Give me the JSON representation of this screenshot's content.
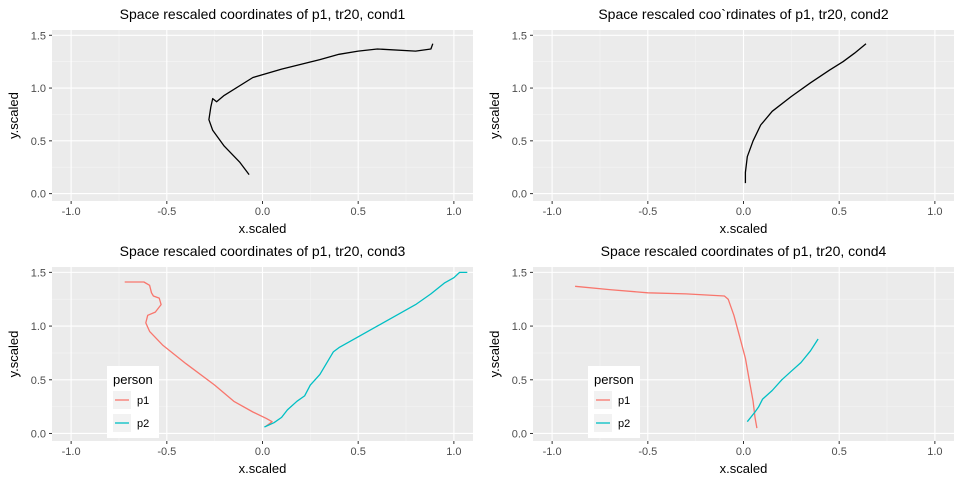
{
  "chart_data": [
    {
      "type": "line",
      "title": "Space rescaled coordinates of p1, tr20, cond1",
      "xlabel": "x.scaled",
      "ylabel": "y.scaled",
      "xlim": [
        -1.1,
        1.1
      ],
      "ylim": [
        -0.07,
        1.55
      ],
      "xticks": [
        -1.0,
        -0.5,
        0.0,
        0.5,
        1.0
      ],
      "xtick_labels": [
        "-1.0",
        "-0.5",
        "0.0",
        "0.5",
        "1.0"
      ],
      "yticks": [
        0.0,
        0.5,
        1.0,
        1.5
      ],
      "ytick_labels": [
        "0.0",
        "0.5",
        "1.0",
        "1.5"
      ],
      "grid": true,
      "legend": null,
      "series": [
        {
          "color": "#000000",
          "points": [
            [
              0.89,
              1.42
            ],
            [
              0.88,
              1.37
            ],
            [
              0.8,
              1.35
            ],
            [
              0.6,
              1.37
            ],
            [
              0.5,
              1.35
            ],
            [
              0.4,
              1.32
            ],
            [
              0.3,
              1.27
            ],
            [
              0.1,
              1.18
            ],
            [
              -0.05,
              1.1
            ],
            [
              -0.2,
              0.93
            ],
            [
              -0.24,
              0.87
            ],
            [
              -0.26,
              0.9
            ],
            [
              -0.27,
              0.82
            ],
            [
              -0.28,
              0.7
            ],
            [
              -0.26,
              0.6
            ],
            [
              -0.2,
              0.45
            ],
            [
              -0.12,
              0.3
            ],
            [
              -0.07,
              0.18
            ]
          ]
        }
      ]
    },
    {
      "type": "line",
      "title": "Space rescaled coo`rdinates of p1, tr20, cond2",
      "xlabel": "x.scaled",
      "ylabel": "y.scaled",
      "xlim": [
        -1.1,
        1.1
      ],
      "ylim": [
        -0.07,
        1.55
      ],
      "xticks": [
        -1.0,
        -0.5,
        0.0,
        0.5,
        1.0
      ],
      "xtick_labels": [
        "-1.0",
        "-0.5",
        "0.0",
        "0.5",
        "1.0"
      ],
      "yticks": [
        0.0,
        0.5,
        1.0,
        1.5
      ],
      "ytick_labels": [
        "0.0",
        "0.5",
        "1.0",
        "1.5"
      ],
      "grid": true,
      "legend": null,
      "series": [
        {
          "color": "#000000",
          "points": [
            [
              0.01,
              0.1
            ],
            [
              0.01,
              0.2
            ],
            [
              0.02,
              0.35
            ],
            [
              0.05,
              0.5
            ],
            [
              0.09,
              0.65
            ],
            [
              0.15,
              0.78
            ],
            [
              0.25,
              0.92
            ],
            [
              0.35,
              1.05
            ],
            [
              0.45,
              1.17
            ],
            [
              0.52,
              1.25
            ],
            [
              0.58,
              1.33
            ],
            [
              0.64,
              1.42
            ]
          ]
        }
      ]
    },
    {
      "type": "line",
      "title": "Space rescaled coordinates of p1, tr20, cond3",
      "xlabel": "x.scaled",
      "ylabel": "y.scaled",
      "xlim": [
        -1.1,
        1.1
      ],
      "ylim": [
        -0.07,
        1.55
      ],
      "xticks": [
        -1.0,
        -0.5,
        0.0,
        0.5,
        1.0
      ],
      "xtick_labels": [
        "-1.0",
        "-0.5",
        "0.0",
        "0.5",
        "1.0"
      ],
      "yticks": [
        0.0,
        0.5,
        1.0,
        1.5
      ],
      "ytick_labels": [
        "0.0",
        "0.5",
        "1.0",
        "1.5"
      ],
      "grid": true,
      "legend": {
        "title": "person",
        "position": "bottom-left"
      },
      "series": [
        {
          "name": "p1",
          "color": "#F8766D",
          "points": [
            [
              -0.72,
              1.41
            ],
            [
              -0.62,
              1.41
            ],
            [
              -0.59,
              1.38
            ],
            [
              -0.58,
              1.31
            ],
            [
              -0.57,
              1.28
            ],
            [
              -0.54,
              1.26
            ],
            [
              -0.53,
              1.2
            ],
            [
              -0.56,
              1.13
            ],
            [
              -0.6,
              1.1
            ],
            [
              -0.61,
              1.03
            ],
            [
              -0.59,
              0.95
            ],
            [
              -0.52,
              0.82
            ],
            [
              -0.4,
              0.65
            ],
            [
              -0.25,
              0.45
            ],
            [
              -0.15,
              0.3
            ],
            [
              -0.05,
              0.2
            ],
            [
              0.02,
              0.14
            ],
            [
              0.05,
              0.11
            ],
            [
              0.02,
              0.07
            ]
          ]
        },
        {
          "name": "p2",
          "color": "#00BFC4",
          "points": [
            [
              0.01,
              0.06
            ],
            [
              0.06,
              0.1
            ],
            [
              0.1,
              0.15
            ],
            [
              0.13,
              0.22
            ],
            [
              0.18,
              0.3
            ],
            [
              0.22,
              0.35
            ],
            [
              0.25,
              0.45
            ],
            [
              0.3,
              0.55
            ],
            [
              0.35,
              0.7
            ],
            [
              0.37,
              0.76
            ],
            [
              0.4,
              0.8
            ],
            [
              0.5,
              0.9
            ],
            [
              0.6,
              1.0
            ],
            [
              0.7,
              1.1
            ],
            [
              0.8,
              1.2
            ],
            [
              0.88,
              1.3
            ],
            [
              0.95,
              1.4
            ],
            [
              1.0,
              1.45
            ],
            [
              1.03,
              1.5
            ],
            [
              1.07,
              1.5
            ]
          ]
        }
      ]
    },
    {
      "type": "line",
      "title": "Space rescaled coordinates of p1, tr20, cond4",
      "xlabel": "x.scaled",
      "ylabel": "y.scaled",
      "xlim": [
        -1.1,
        1.1
      ],
      "ylim": [
        -0.07,
        1.55
      ],
      "xticks": [
        -1.0,
        -0.5,
        0.0,
        0.5,
        1.0
      ],
      "xtick_labels": [
        "-1.0",
        "-0.5",
        "0.0",
        "0.5",
        "1.0"
      ],
      "yticks": [
        0.0,
        0.5,
        1.0,
        1.5
      ],
      "ytick_labels": [
        "0.0",
        "0.5",
        "1.0",
        "1.5"
      ],
      "grid": true,
      "legend": {
        "title": "person",
        "position": "bottom-left"
      },
      "series": [
        {
          "name": "p1",
          "color": "#F8766D",
          "points": [
            [
              -0.88,
              1.37
            ],
            [
              -0.7,
              1.34
            ],
            [
              -0.5,
              1.31
            ],
            [
              -0.3,
              1.3
            ],
            [
              -0.1,
              1.28
            ],
            [
              -0.08,
              1.25
            ],
            [
              -0.05,
              1.1
            ],
            [
              -0.02,
              0.9
            ],
            [
              0.01,
              0.7
            ],
            [
              0.03,
              0.5
            ],
            [
              0.05,
              0.3
            ],
            [
              0.06,
              0.15
            ],
            [
              0.07,
              0.05
            ]
          ]
        },
        {
          "name": "p2",
          "color": "#00BFC4",
          "points": [
            [
              0.02,
              0.11
            ],
            [
              0.06,
              0.2
            ],
            [
              0.08,
              0.25
            ],
            [
              0.1,
              0.32
            ],
            [
              0.15,
              0.4
            ],
            [
              0.2,
              0.5
            ],
            [
              0.25,
              0.58
            ],
            [
              0.3,
              0.66
            ],
            [
              0.35,
              0.77
            ],
            [
              0.39,
              0.88
            ]
          ]
        }
      ]
    }
  ]
}
